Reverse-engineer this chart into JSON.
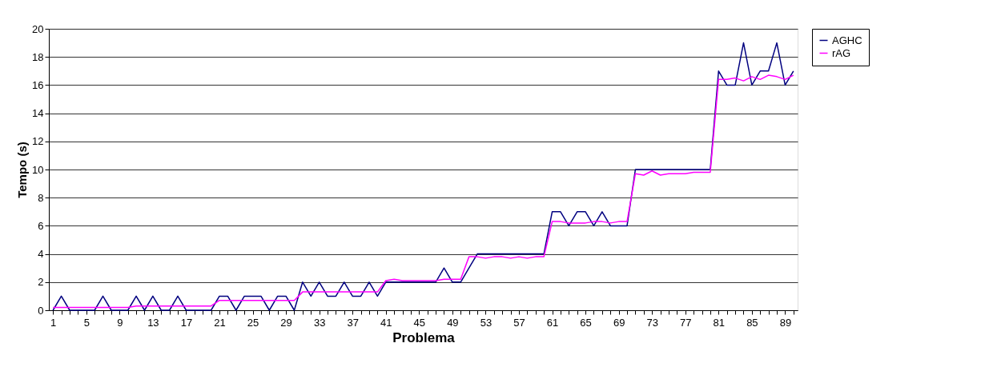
{
  "chart_data": {
    "type": "line",
    "xlabel": "Problema",
    "ylabel": "Tempo (s)",
    "categories": [
      "1",
      null,
      null,
      null,
      "5",
      null,
      null,
      null,
      "9",
      null,
      null,
      null,
      "13",
      null,
      null,
      null,
      "17",
      null,
      null,
      null,
      "21",
      null,
      null,
      null,
      "25",
      null,
      null,
      null,
      "29",
      null,
      null,
      null,
      "33",
      null,
      null,
      null,
      "37",
      null,
      null,
      null,
      "41",
      null,
      null,
      null,
      "45",
      null,
      null,
      null,
      "49",
      null,
      null,
      null,
      "53",
      null,
      null,
      null,
      "57",
      null,
      null,
      null,
      "61",
      null,
      null,
      null,
      "65",
      null,
      null,
      null,
      "69",
      null,
      null,
      null,
      "73",
      null,
      null,
      null,
      "77",
      null,
      null,
      null,
      "81",
      null,
      null,
      null,
      "85",
      null,
      null,
      null,
      "89",
      null
    ],
    "series": [
      {
        "name": "AGHC",
        "color": "#000080",
        "values": [
          0,
          1,
          0,
          0,
          0,
          0,
          1,
          0,
          0,
          0,
          1,
          0,
          1,
          0,
          0,
          1,
          0,
          0,
          0,
          0,
          1,
          1,
          0,
          1,
          1,
          1,
          0,
          1,
          1,
          0,
          2,
          1,
          2,
          1,
          1,
          2,
          1,
          1,
          2,
          1,
          2,
          2,
          2,
          2,
          2,
          2,
          2,
          3,
          2,
          2,
          3,
          4,
          4,
          4,
          4,
          4,
          4,
          4,
          4,
          4,
          7,
          7,
          6,
          7,
          7,
          6,
          7,
          6,
          6,
          6,
          10,
          10,
          10,
          10,
          10,
          10,
          10,
          10,
          10,
          10,
          17,
          16,
          16,
          19,
          16,
          17,
          17,
          19,
          16,
          17
        ]
      },
      {
        "name": "rAG",
        "color": "#ff00ff",
        "values": [
          0.2,
          0.2,
          0.2,
          0.2,
          0.2,
          0.2,
          0.2,
          0.2,
          0.2,
          0.2,
          0.3,
          0.3,
          0.3,
          0.3,
          0.3,
          0.3,
          0.3,
          0.3,
          0.3,
          0.3,
          0.7,
          0.7,
          0.7,
          0.7,
          0.7,
          0.7,
          0.7,
          0.7,
          0.7,
          0.7,
          1.3,
          1.3,
          1.3,
          1.3,
          1.3,
          1.3,
          1.3,
          1.3,
          1.3,
          1.3,
          2.1,
          2.2,
          2.1,
          2.1,
          2.1,
          2.1,
          2.1,
          2.2,
          2.2,
          2.2,
          3.8,
          3.8,
          3.7,
          3.8,
          3.8,
          3.7,
          3.8,
          3.7,
          3.8,
          3.8,
          6.3,
          6.3,
          6.2,
          6.2,
          6.2,
          6.3,
          6.3,
          6.2,
          6.3,
          6.3,
          9.7,
          9.6,
          9.9,
          9.6,
          9.7,
          9.7,
          9.7,
          9.8,
          9.8,
          9.8,
          16.4,
          16.4,
          16.5,
          16.3,
          16.6,
          16.4,
          16.7,
          16.6,
          16.4,
          16.7
        ]
      }
    ],
    "ylim": [
      0,
      20
    ],
    "yticks": [
      0,
      2,
      4,
      6,
      8,
      10,
      12,
      14,
      16,
      18,
      20
    ],
    "grid": "y",
    "legend": "right",
    "marker": "none",
    "line_style": "solid"
  }
}
